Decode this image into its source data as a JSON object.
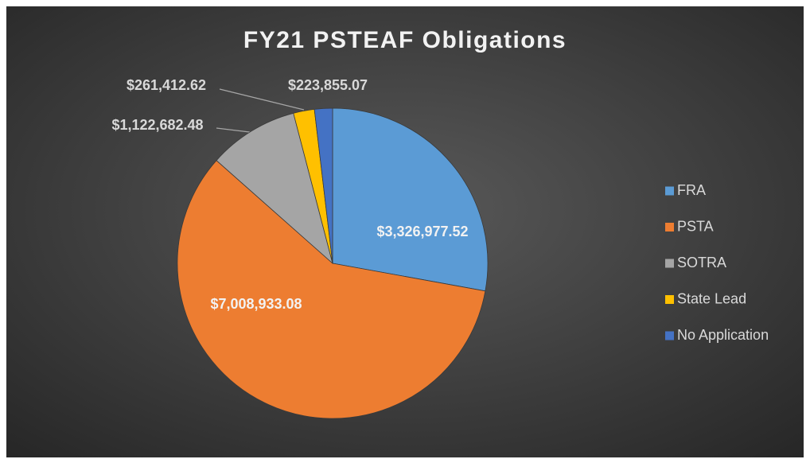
{
  "chart_data": {
    "type": "pie",
    "title": "FY21 PSTEAF Obligations",
    "categories": [
      "FRA",
      "PSTA",
      "SOTRA",
      "State Lead",
      "No Application"
    ],
    "values": [
      3326977.52,
      7008933.08,
      1122682.48,
      261412.62,
      223855.07
    ],
    "value_labels": [
      "$3,326,977.52",
      "$7,008,933.08",
      "$1,122,682.48",
      "$261,412.62",
      "$223,855.07"
    ],
    "colors": [
      "#5b9bd5",
      "#ed7d31",
      "#a5a5a5",
      "#ffc000",
      "#4472c4"
    ],
    "legend": "right"
  }
}
